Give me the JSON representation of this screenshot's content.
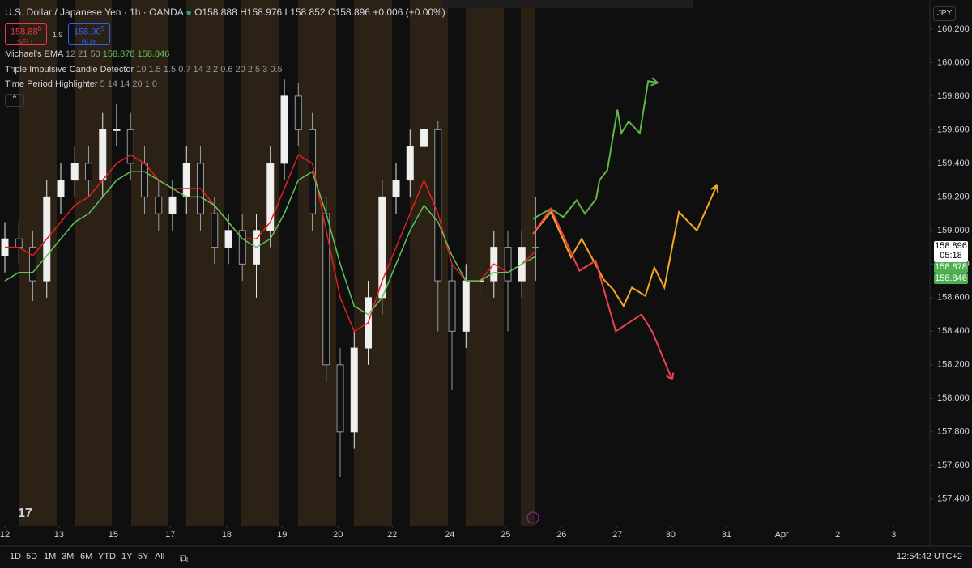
{
  "header": {
    "symbol": "U.S. Dollar / Japanese Yen · 1h · OANDA",
    "ohlc": [
      "O158.888",
      "H158.976",
      "L158.852",
      "C158.896"
    ],
    "change": "+0.006 (+0.00%)",
    "sell": {
      "price": "158.88",
      "pipette": "6",
      "label": "SELL"
    },
    "spread": "1.9",
    "buy": {
      "price": "158.90",
      "pipette": "5",
      "label": "BUY"
    }
  },
  "indicators": [
    {
      "name": "Michael's EMA",
      "params": "12 21 50"
    },
    {
      "name": "Triple Impulsive Candle Detector",
      "params": "10 1.5 1.5 0.7 14 2 2 0.6 20 2.5 3 0.5"
    },
    {
      "name": "Time Period Highlighter",
      "params": "5 14 14 20 1 0"
    }
  ],
  "currency": "JPY",
  "chart_data": {
    "type": "candlestick",
    "x": [
      0,
      0.25,
      0.5,
      0.75,
      1,
      1.25,
      1.5,
      1.75,
      2,
      2.25,
      2.5,
      2.75,
      3,
      3.25,
      3.5,
      3.75,
      4,
      4.25,
      4.5,
      4.75,
      5,
      5.25,
      5.5,
      5.75,
      6,
      6.25,
      6.5,
      6.75,
      7,
      7.25,
      7.5,
      7.75,
      8,
      8.25,
      8.5,
      8.75,
      9,
      9.25,
      9.5
    ],
    "open": [
      158.85,
      158.95,
      158.9,
      158.7,
      159.2,
      159.3,
      159.4,
      159.3,
      159.6,
      159.6,
      159.4,
      159.2,
      159.1,
      159.2,
      159.4,
      159.1,
      158.9,
      159.0,
      158.8,
      159.0,
      159.4,
      159.8,
      159.6,
      159.1,
      158.2,
      157.8,
      158.3,
      158.6,
      159.2,
      159.3,
      159.5,
      159.6,
      158.7,
      158.4,
      158.7,
      158.7,
      158.9,
      158.7,
      158.9
    ],
    "high": [
      159.05,
      159.05,
      159.0,
      159.3,
      159.4,
      159.5,
      159.5,
      159.7,
      159.75,
      159.7,
      159.5,
      159.3,
      159.3,
      159.5,
      159.5,
      159.2,
      159.1,
      159.1,
      159.1,
      159.5,
      159.9,
      159.88,
      159.7,
      159.2,
      158.3,
      158.4,
      158.7,
      159.3,
      159.4,
      159.6,
      159.65,
      159.65,
      158.8,
      158.8,
      158.8,
      159.0,
      159.0,
      159.0,
      159.2
    ],
    "low": [
      158.75,
      158.8,
      158.58,
      158.6,
      159.1,
      159.2,
      159.2,
      159.2,
      159.5,
      159.3,
      159.1,
      159.0,
      159.0,
      159.1,
      159.0,
      158.8,
      158.8,
      158.7,
      158.6,
      158.9,
      159.3,
      159.5,
      159.0,
      158.1,
      157.53,
      157.7,
      158.2,
      158.5,
      159.1,
      159.2,
      159.4,
      158.4,
      158.05,
      158.3,
      158.6,
      158.6,
      158.4,
      158.6,
      158.7
    ],
    "close": [
      158.95,
      158.9,
      158.7,
      159.2,
      159.3,
      159.4,
      159.3,
      159.6,
      159.6,
      159.4,
      159.2,
      159.1,
      159.2,
      159.4,
      159.1,
      158.9,
      159.0,
      158.8,
      159.0,
      159.4,
      159.8,
      159.6,
      159.1,
      158.2,
      157.8,
      158.3,
      158.6,
      159.2,
      159.3,
      159.5,
      159.6,
      158.7,
      158.4,
      158.7,
      158.7,
      158.9,
      158.7,
      158.9,
      158.896
    ],
    "series": [
      {
        "color": "#e0201f",
        "values": [
          158.9,
          158.9,
          158.85,
          158.95,
          159.05,
          159.15,
          159.2,
          159.3,
          159.4,
          159.45,
          159.4,
          159.3,
          159.25,
          159.25,
          159.25,
          159.15,
          159.05,
          158.95,
          158.95,
          159.05,
          159.25,
          159.45,
          159.4,
          159.0,
          158.6,
          158.4,
          158.45,
          158.7,
          158.9,
          159.1,
          159.3,
          159.1,
          158.8,
          158.7,
          158.7,
          158.8,
          158.75,
          158.8,
          158.878
        ]
      },
      {
        "color": "#5fc35f",
        "values": [
          158.7,
          158.75,
          158.75,
          158.85,
          158.95,
          159.05,
          159.1,
          159.2,
          159.3,
          159.35,
          159.35,
          159.3,
          159.25,
          159.2,
          159.2,
          159.15,
          159.05,
          158.95,
          158.9,
          158.95,
          159.1,
          159.3,
          159.35,
          159.1,
          158.8,
          158.55,
          158.5,
          158.6,
          158.8,
          159.0,
          159.15,
          159.05,
          158.85,
          158.7,
          158.7,
          158.75,
          158.75,
          158.8,
          158.846
        ]
      }
    ],
    "projections": [
      {
        "color": "#5fb548",
        "x": [
          9.45,
          9.77,
          9.99,
          10.23,
          10.38,
          10.58,
          10.64,
          10.78,
          10.96,
          11.03,
          11.16,
          11.36,
          11.51,
          11.68
        ],
        "values": [
          159.07,
          159.13,
          159.08,
          159.18,
          159.1,
          159.19,
          159.3,
          159.36,
          159.72,
          159.58,
          159.65,
          159.58,
          159.89,
          159.88
        ]
      },
      {
        "color": "#f5a623",
        "x": [
          9.45,
          9.77,
          10.13,
          10.32,
          10.71,
          10.88,
          11.07,
          11.22,
          11.46,
          11.62,
          11.8,
          12.06,
          12.38,
          12.74
        ],
        "values": [
          158.98,
          159.11,
          158.84,
          158.95,
          158.71,
          158.65,
          158.55,
          158.66,
          158.61,
          158.78,
          158.66,
          159.11,
          159.0,
          159.27
        ]
      },
      {
        "color": "#f2404f",
        "x": [
          9.45,
          9.77,
          10.28,
          10.57,
          10.93,
          11.39,
          11.58,
          11.94
        ],
        "values": [
          158.98,
          159.13,
          158.76,
          158.82,
          158.4,
          158.5,
          158.4,
          158.11
        ]
      }
    ],
    "countdown": "05:18",
    "xlim": [
      -0.087,
      16.55
    ],
    "ylim": [
      157.24,
      160.373
    ],
    "xticks": [
      {
        "value": 0,
        "label": "12"
      },
      {
        "value": 0.97,
        "label": "13"
      },
      {
        "value": 1.94,
        "label": "15"
      },
      {
        "value": 2.96,
        "label": "17"
      },
      {
        "value": 3.97,
        "label": "18"
      },
      {
        "value": 4.96,
        "label": "19"
      },
      {
        "value": 5.96,
        "label": "20"
      },
      {
        "value": 6.93,
        "label": "22"
      },
      {
        "value": 7.96,
        "label": "24"
      },
      {
        "value": 8.96,
        "label": "25"
      },
      {
        "value": 9.96,
        "label": "26"
      },
      {
        "value": 10.96,
        "label": "27"
      },
      {
        "value": 11.91,
        "label": "30"
      },
      {
        "value": 12.91,
        "label": "31"
      },
      {
        "value": 13.9,
        "label": "Apr"
      },
      {
        "value": 14.9,
        "label": "2"
      },
      {
        "value": 15.9,
        "label": "3"
      }
    ],
    "yticks": [
      {
        "value": 157.4,
        "label": "157.400"
      },
      {
        "value": 157.6,
        "label": "157.600"
      },
      {
        "value": 157.8,
        "label": "157.800"
      },
      {
        "value": 158.0,
        "label": "158.000"
      },
      {
        "value": 158.2,
        "label": "158.200"
      },
      {
        "value": 158.4,
        "label": "158.400"
      },
      {
        "value": 158.6,
        "label": "158.600"
      },
      {
        "value": 158.8,
        "label": "158.800"
      },
      {
        "value": 159.0,
        "label": "159.000"
      },
      {
        "value": 159.2,
        "label": "159.200"
      },
      {
        "value": 159.4,
        "label": "159.400"
      },
      {
        "value": 159.6,
        "label": "159.600"
      },
      {
        "value": 159.8,
        "label": "159.800"
      },
      {
        "value": 160.0,
        "label": "160.000"
      },
      {
        "value": 160.2,
        "label": "160.200"
      }
    ]
  },
  "bottom_bar": {
    "ranges": [
      "1D",
      "5D",
      "1M",
      "3M",
      "6M",
      "YTD",
      "1Y",
      "5Y",
      "All"
    ],
    "time": "12:54:42 UTC+2"
  }
}
